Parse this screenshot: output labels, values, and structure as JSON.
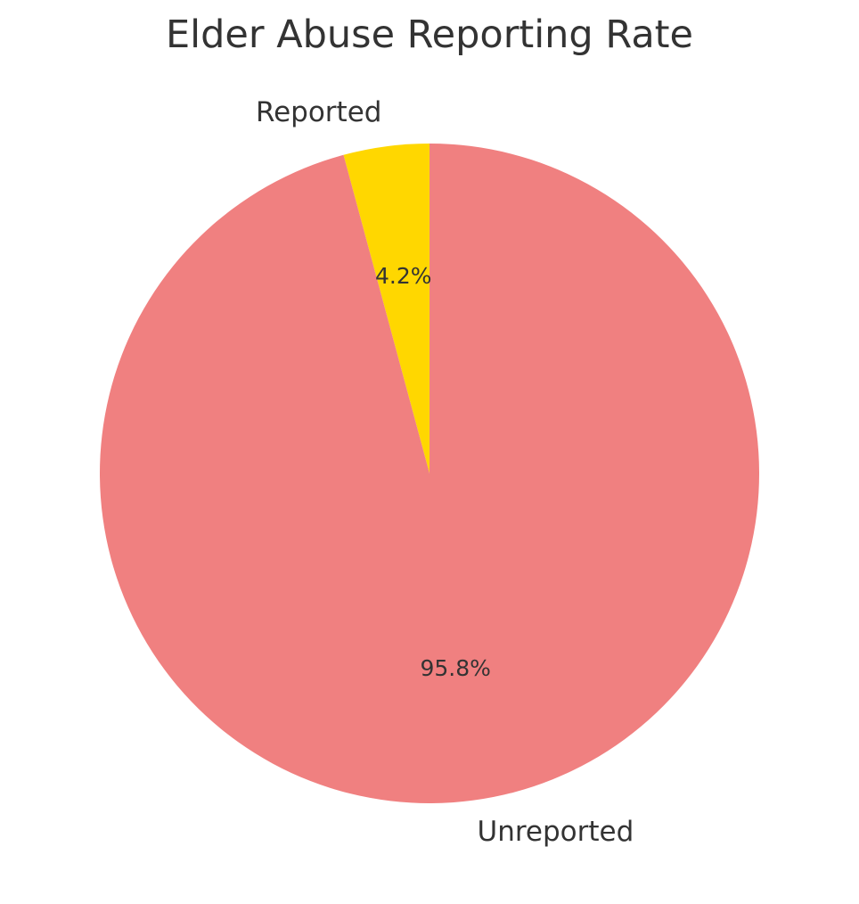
{
  "chart_data": {
    "type": "pie",
    "title": "Elder Abuse Reporting Rate",
    "categories": [
      "Reported",
      "Unreported"
    ],
    "values": [
      4.2,
      95.8
    ],
    "percent_labels": [
      "4.2%",
      "95.8%"
    ],
    "colors": [
      "#ffd700",
      "#f08080"
    ],
    "start": "top",
    "direction": "counterclockwise",
    "legend": "none"
  }
}
